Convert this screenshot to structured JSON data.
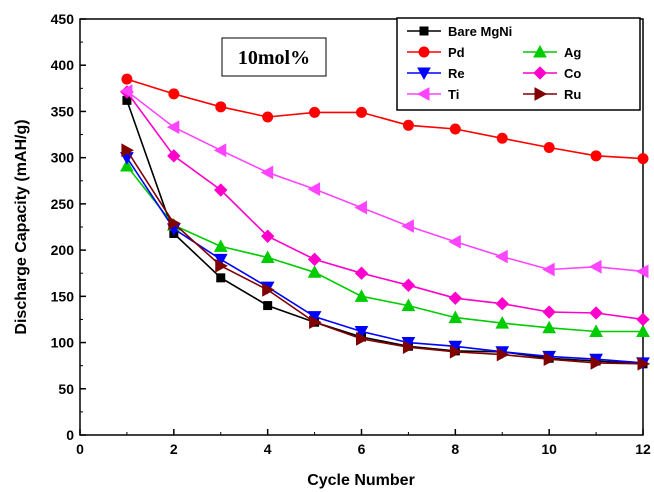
{
  "chart_data": {
    "type": "line",
    "xlabel": "Cycle Number",
    "ylabel": "Discharge Capacity  (mAH/g)",
    "xlim": [
      0,
      12
    ],
    "ylim": [
      0,
      450
    ],
    "xticks": [
      0,
      2,
      4,
      6,
      8,
      10,
      12
    ],
    "yticks": [
      0,
      50,
      100,
      150,
      200,
      250,
      300,
      350,
      400,
      450
    ],
    "grid": false,
    "legend_position": "top-right",
    "annotation": "10mol%",
    "x": [
      1,
      2,
      3,
      4,
      5,
      6,
      7,
      8,
      9,
      10,
      11,
      12
    ],
    "series": [
      {
        "name": "Bare MgNi",
        "color": "#000000",
        "marker": "square",
        "values": [
          362,
          218,
          170,
          140,
          122,
          106,
          96,
          91,
          90,
          83,
          80,
          77
        ]
      },
      {
        "name": "Pd",
        "color": "#ff0000",
        "marker": "circle",
        "values": [
          385,
          369,
          355,
          344,
          349,
          349,
          335,
          331,
          321,
          311,
          302,
          299
        ]
      },
      {
        "name": "Ag",
        "color": "#00cc00",
        "marker": "triangle-up",
        "values": [
          291,
          227,
          204,
          192,
          176,
          150,
          140,
          127,
          121,
          116,
          112,
          112
        ]
      },
      {
        "name": "Re",
        "color": "#0000ff",
        "marker": "triangle-down",
        "values": [
          300,
          223,
          190,
          160,
          128,
          112,
          100,
          96,
          90,
          85,
          82,
          78
        ]
      },
      {
        "name": "Co",
        "color": "#ff00cc",
        "marker": "diamond",
        "values": [
          371,
          302,
          265,
          215,
          190,
          175,
          162,
          148,
          142,
          133,
          132,
          125
        ]
      },
      {
        "name": "Ti",
        "color": "#ff44ff",
        "marker": "triangle-left",
        "values": [
          372,
          333,
          308,
          284,
          266,
          246,
          226,
          209,
          193,
          179,
          182,
          177
        ]
      },
      {
        "name": "Ru",
        "color": "#800000",
        "marker": "triangle-right",
        "values": [
          308,
          229,
          183,
          157,
          122,
          104,
          95,
          90,
          87,
          82,
          78,
          77
        ]
      }
    ]
  }
}
